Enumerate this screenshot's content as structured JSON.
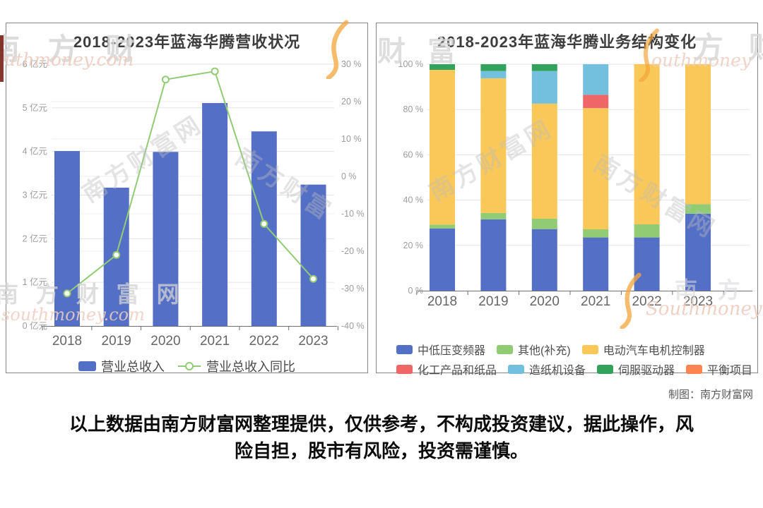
{
  "page": {
    "credit": "制图：南方财富网",
    "disclaimer": {
      "line1": "以上数据由南方财富网整理提供，仅供参考，不构成投资建议，据此操作，风",
      "line2": "险自担，股市有风险，投资需谨慎。"
    }
  },
  "watermarks": {
    "top_left_cjk": "南 方 财",
    "top_left_en": "uthmoney.com",
    "right_panel_top_cjk": "财 富",
    "top_right_cjk": "方 财",
    "top_right_en": "outhmoney",
    "diag_cjk": "南方财富网",
    "diag_cjk_short": "南方财富",
    "bottom_left_cjk": "南 方 财 富 网",
    "bottom_left_en": "southmoney.com",
    "bottom_right_cjk": "南 方",
    "bottom_right_en": "Southmoney"
  },
  "chart_data": [
    {
      "type": "bar",
      "title": "2018-2023年蓝海华腾营收状况",
      "categories": [
        "2018",
        "2019",
        "2020",
        "2021",
        "2022",
        "2023"
      ],
      "series": [
        {
          "name": "营业总收入",
          "type": "bar",
          "axis": "left",
          "unit": "亿元",
          "color": "#5470c6",
          "values": [
            4.01,
            3.17,
            3.99,
            5.11,
            4.46,
            3.24
          ]
        },
        {
          "name": "营业总收入同比",
          "type": "line",
          "axis": "right",
          "unit": "%",
          "color": "#91cc75",
          "values": [
            -31.3,
            -21.0,
            25.9,
            28.1,
            -12.7,
            -27.4
          ]
        }
      ],
      "left_axis": {
        "min": 0,
        "max": 6,
        "step": 1,
        "suffix": " 亿元"
      },
      "right_axis": {
        "min": -40,
        "max": 30,
        "step": 10,
        "suffix": " %"
      },
      "legend_position": "bottom",
      "grid": true
    },
    {
      "type": "bar",
      "stacked": true,
      "title": "2018-2023年蓝海华腾业务结构变化",
      "categories": [
        "2018",
        "2019",
        "2020",
        "2021",
        "2022",
        "2023"
      ],
      "y_axis": {
        "min": 0,
        "max": 100,
        "step": 20,
        "suffix": " %"
      },
      "series": [
        {
          "name": "中低压变频器",
          "color": "#5470c6",
          "values": [
            27.5,
            31.5,
            27.2,
            23.5,
            23.5,
            34.0
          ]
        },
        {
          "name": "其他(补充)",
          "color": "#91cc75",
          "values": [
            1.7,
            2.8,
            4.6,
            3.6,
            5.8,
            4.2
          ]
        },
        {
          "name": "电动汽车电机控制器",
          "color": "#fac858",
          "values": [
            68.3,
            59.5,
            50.8,
            53.5,
            70.7,
            61.8
          ]
        },
        {
          "name": "化工产品和纸品",
          "color": "#ee6666",
          "values": [
            0,
            0,
            0,
            5.9,
            0,
            0
          ]
        },
        {
          "name": "造纸机设备",
          "color": "#73c0de",
          "values": [
            0,
            3.2,
            14.4,
            13.5,
            0,
            0
          ]
        },
        {
          "name": "伺服驱动器",
          "color": "#33a35c",
          "values": [
            2.5,
            3.0,
            3.0,
            0,
            0,
            0
          ]
        },
        {
          "name": "平衡项目",
          "color": "#fc8452",
          "values": [
            0,
            0,
            0,
            0,
            0,
            0
          ]
        }
      ],
      "legend_position": "bottom",
      "grid": true
    }
  ]
}
